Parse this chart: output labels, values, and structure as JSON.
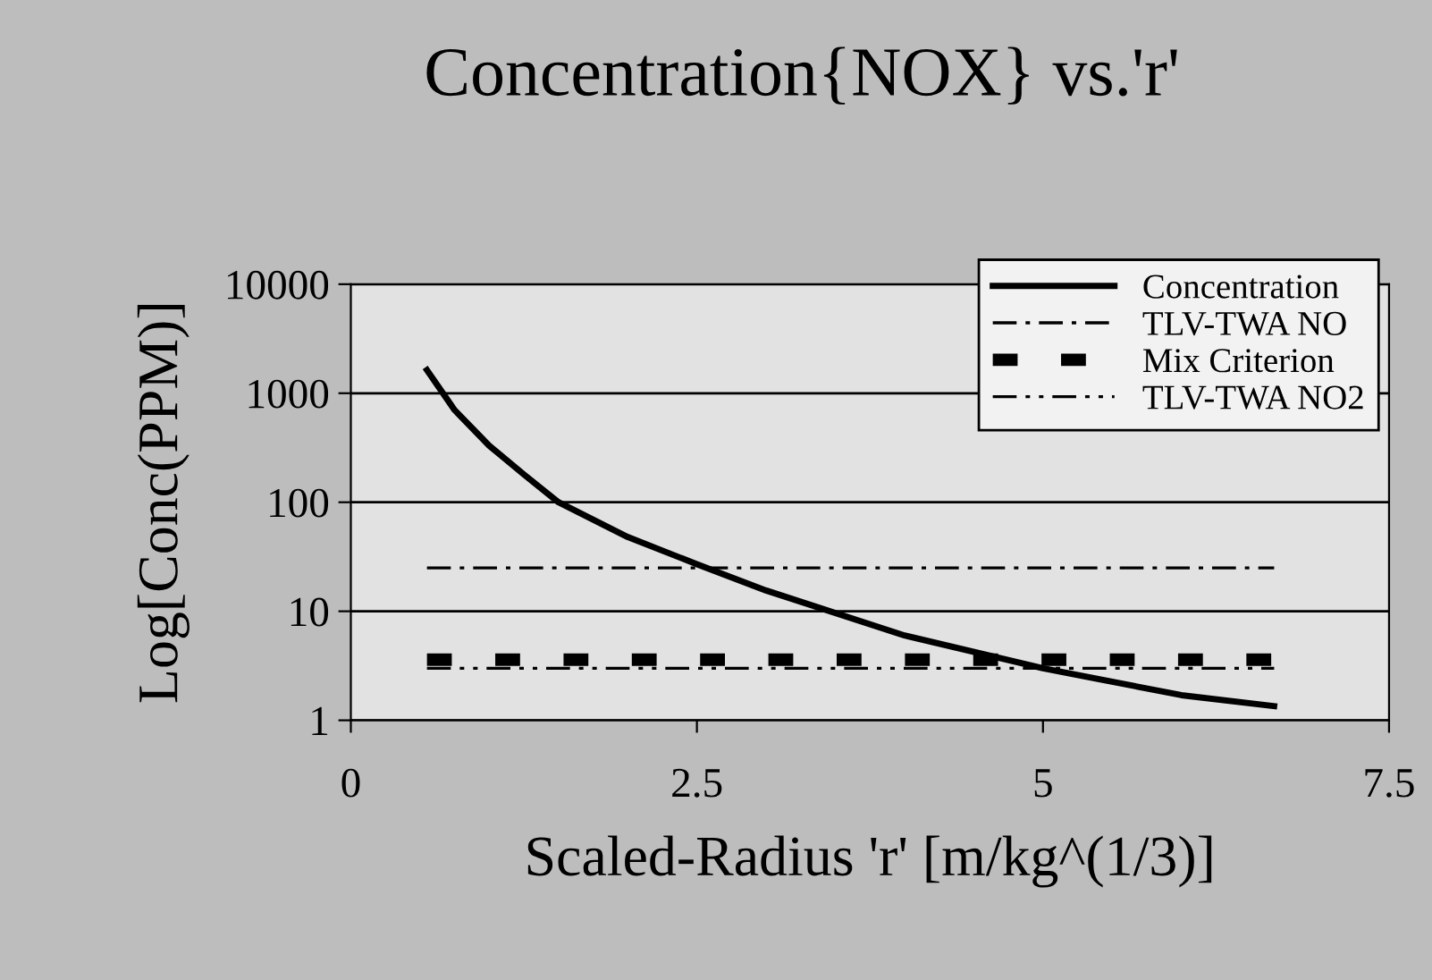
{
  "chart_data": {
    "type": "line",
    "title": "Concentration{NOX} vs.'r'",
    "xlabel": "Scaled-Radius 'r' [m/kg^(1/3)]",
    "ylabel": "Log[Conc(PPM)]",
    "log": "y",
    "xlim": [
      0,
      7.5
    ],
    "xticks": [
      0,
      2.5,
      5,
      7.5
    ],
    "ylim": [
      1,
      10000
    ],
    "yticks": [
      1,
      10,
      100,
      1000,
      10000
    ],
    "grid": "y",
    "legend": "top right",
    "marker": "none",
    "series": [
      {
        "name": "Concentration",
        "color": "#000000",
        "line_style": "solid",
        "x": [
          0.55,
          0.75,
          1.0,
          1.25,
          1.5,
          2.0,
          2.5,
          3.0,
          4.0,
          5.0,
          6.0,
          6.67
        ],
        "values": [
          1630,
          700,
          330,
          180,
          100,
          48,
          27,
          15.5,
          6,
          3,
          1.7,
          1.35
        ]
      },
      {
        "name": "TLV-TWA NO",
        "color": "#000000",
        "line_style": "dashdot",
        "x": [
          0.55,
          6.67
        ],
        "values": [
          25,
          25
        ]
      },
      {
        "name": "Mix Criterion",
        "color": "#000000",
        "line_style": "dashed",
        "x": [
          0.55,
          6.67
        ],
        "values": [
          3.6,
          3.6
        ]
      },
      {
        "name": "TLV-TWA NO2",
        "color": "#000000",
        "line_style": "dashdotdot",
        "x": [
          0.55,
          6.67
        ],
        "values": [
          3,
          3
        ]
      }
    ]
  }
}
